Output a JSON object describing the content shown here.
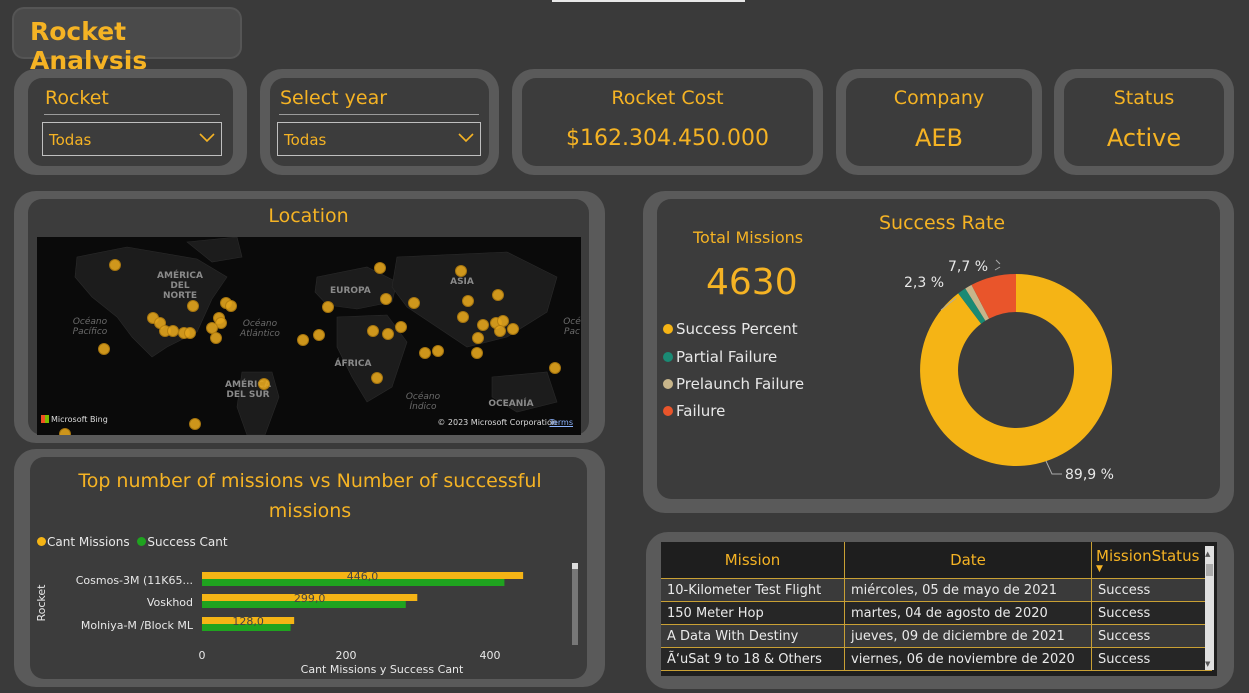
{
  "title": "Rocket Analysis",
  "filters": {
    "rocket": {
      "label": "Rocket",
      "value": "Todas"
    },
    "year": {
      "label": "Select year",
      "value": "Todas"
    }
  },
  "kpis": {
    "cost": {
      "label": "Rocket Cost",
      "value": "$162.304.450.000"
    },
    "company": {
      "label": "Company",
      "value": "AEB"
    },
    "status": {
      "label": "Status",
      "value": "Active"
    }
  },
  "location": {
    "title": "Location",
    "continents": [
      "AMÉRICA DEL NORTE",
      "EUROPA",
      "ASIA",
      "ÁFRICA",
      "AMÉRICA DEL SUR",
      "OCEANÍA"
    ],
    "oceans": [
      "Océano Pacífico",
      "Océano Atlántico",
      "Océano Índico",
      "Océ Pac"
    ],
    "bing": "Microsoft Bing",
    "copyright": "© 2023 Microsoft Corporation",
    "terms": "Terms"
  },
  "success_rate": {
    "title": "Success Rate",
    "total_label": "Total Missions",
    "total_value": "4630",
    "legend": [
      "Success Percent",
      "Partial Failure",
      "Prelaunch Failure",
      "Failure"
    ],
    "labels": {
      "success": "89,9 %",
      "partial": "2,3 %",
      "failure": "7,7 %"
    },
    "colors": {
      "success": "#f5b415",
      "partial": "#1a8a74",
      "prelaunch": "#c7b58a",
      "failure": "#e9552b"
    }
  },
  "chart_data": {
    "type": "bar",
    "title": "Top number of missions vs Number of successful missions",
    "xlabel": "Cant Missions y Success Cant",
    "ylabel": "Rocket",
    "categories": [
      "Cosmos-3M (11K65...",
      "Voskhod",
      "Molniya-M /Block ML"
    ],
    "series": [
      {
        "name": "Cant Missions",
        "values": [
          446,
          299,
          128
        ],
        "color": "#f5b415"
      },
      {
        "name": "Success Cant",
        "values": [
          420,
          283,
          123
        ],
        "color": "#1fa31f"
      }
    ],
    "data_labels": [
      "446,0",
      "299,0",
      "128,0"
    ],
    "xticks": [
      "0",
      "200",
      "400"
    ],
    "xlim": [
      0,
      490
    ]
  },
  "table": {
    "headers": [
      "Mission",
      "Date",
      "MissionStatus"
    ],
    "rows": [
      [
        "10-Kilometer Test Flight",
        "miércoles, 05 de mayo de 2021",
        "Success"
      ],
      [
        "150 Meter Hop",
        "martes, 04 de agosto de 2020",
        "Success"
      ],
      [
        "A Data With Destiny",
        "jueves, 09 de diciembre de 2021",
        "Success"
      ],
      [
        "Ã‘uSat 9 to 18 & Others",
        "viernes, 06 de noviembre de 2020",
        "Success"
      ]
    ]
  }
}
